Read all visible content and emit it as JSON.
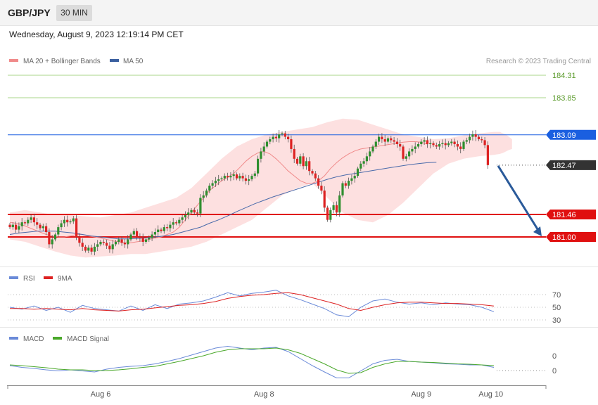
{
  "header": {
    "symbol": "GBP/JPY",
    "timeframe": "30 MIN",
    "datetime": "Wednesday, August 9, 2023 12:19:14 PM CET"
  },
  "colors": {
    "bull": "#2f8f2f",
    "bear": "#dd2222",
    "ma20": "#f08a8a",
    "band": "#fde0e0",
    "ma50": "#4a6aaa",
    "resistance": "#1a5fe0",
    "target": "#5a9a2a",
    "support": "#e01010",
    "price": "#333333",
    "rsi": "#6a8ad8",
    "rsi9": "#dd2222",
    "macd": "#6a8ad8",
    "macdsig": "#4aa82a",
    "arrow": "#2a5a9a"
  },
  "chart_data": {
    "type": "candlestick",
    "symbol": "GBP/JPY",
    "timeframe": "30 MIN",
    "credit": "Research © 2023 Trading Central",
    "legend": [
      {
        "label": "MA 20 + Bollinger Bands",
        "color": "#f08a8a"
      },
      {
        "label": "MA 50",
        "color": "#3a5f9f"
      }
    ],
    "levels": [
      {
        "label": "184.31",
        "value": 184.31,
        "kind": "target"
      },
      {
        "label": "183.85",
        "value": 183.85,
        "kind": "target"
      },
      {
        "label": "183.09",
        "value": 183.09,
        "kind": "resistance"
      },
      {
        "label": "182.47",
        "value": 182.47,
        "kind": "price"
      },
      {
        "label": "181.46",
        "value": 181.46,
        "kind": "support"
      },
      {
        "label": "181.00",
        "value": 181.0,
        "kind": "support"
      }
    ],
    "x_labels": [
      {
        "label": "Aug 6",
        "index": 30
      },
      {
        "label": "Aug 8",
        "index": 84
      },
      {
        "label": "Aug 9",
        "index": 136
      },
      {
        "label": "Aug 10",
        "index": 159
      }
    ],
    "close": [
      181.2,
      181.25,
      181.15,
      181.22,
      181.3,
      181.28,
      181.35,
      181.4,
      181.3,
      181.25,
      181.18,
      181.22,
      181.1,
      180.85,
      180.95,
      181.05,
      181.2,
      181.28,
      181.35,
      181.3,
      181.32,
      181.38,
      181.0,
      180.88,
      180.8,
      180.72,
      180.78,
      180.7,
      180.8,
      180.85,
      180.9,
      180.88,
      180.82,
      180.75,
      180.85,
      180.9,
      180.95,
      180.88,
      180.85,
      180.95,
      181.05,
      181.12,
      181.0,
      180.98,
      180.9,
      180.95,
      180.98,
      181.05,
      181.1,
      181.15,
      181.12,
      181.2,
      181.18,
      181.25,
      181.3,
      181.28,
      181.35,
      181.4,
      181.45,
      181.5,
      181.55,
      181.5,
      181.48,
      181.8,
      181.85,
      181.95,
      182.05,
      182.1,
      182.15,
      182.18,
      182.2,
      182.25,
      182.22,
      182.25,
      182.28,
      182.2,
      182.25,
      182.2,
      182.15,
      182.18,
      182.25,
      182.3,
      182.6,
      182.75,
      182.85,
      182.95,
      183.0,
      183.05,
      183.02,
      183.1,
      183.12,
      183.05,
      183.0,
      182.8,
      182.6,
      182.5,
      182.65,
      182.45,
      182.55,
      182.35,
      182.3,
      182.2,
      182.05,
      181.95,
      181.6,
      181.35,
      181.55,
      181.65,
      181.5,
      181.85,
      182.1,
      182.05,
      182.15,
      182.2,
      182.25,
      182.4,
      182.5,
      182.55,
      182.65,
      182.75,
      182.85,
      182.95,
      183.05,
      183.0,
      182.95,
      183.02,
      182.98,
      182.95,
      182.9,
      182.85,
      182.6,
      182.65,
      182.75,
      182.8,
      182.85,
      182.9,
      182.95,
      182.98,
      182.9,
      182.92,
      182.88,
      182.85,
      182.9,
      182.92,
      182.88,
      182.92,
      182.95,
      182.9,
      182.85,
      182.8,
      182.95,
      182.98,
      183.05,
      183.1,
      183.05,
      183.0,
      182.98,
      182.88,
      182.47
    ],
    "ohlc_note": "Bar-by-bar values estimated from the price axis; open = previous close.",
    "ma20": [
      181.3,
      181.28,
      181.25,
      181.2,
      181.15,
      181.1,
      181.05,
      181.02,
      181.0,
      181.0,
      181.02,
      181.05,
      181.05,
      181.02,
      181.0,
      180.98,
      180.95,
      180.92,
      180.9,
      180.88,
      180.88,
      180.9,
      180.92,
      180.95,
      180.98,
      181.0,
      181.05,
      181.1,
      181.2,
      181.35,
      181.5,
      181.65,
      181.8,
      181.95,
      182.05,
      182.15,
      182.22,
      182.3,
      182.42,
      182.55,
      182.65,
      182.72,
      182.75,
      182.7,
      182.6,
      182.48,
      182.35,
      182.25,
      182.15,
      182.1,
      182.1,
      182.15,
      182.25,
      182.4,
      182.52,
      182.62,
      182.7,
      182.76,
      182.8,
      182.82,
      182.84,
      182.86,
      182.88,
      182.9,
      182.92,
      182.94,
      182.95,
      182.95,
      182.94,
      182.9
    ],
    "ma20_x": [
      0,
      2,
      4,
      6,
      8,
      10,
      12,
      14,
      16,
      18,
      20,
      22,
      24,
      26,
      28,
      30,
      32,
      34,
      36,
      38,
      40,
      42,
      44,
      46,
      48,
      50,
      52,
      54,
      56,
      58,
      60,
      62,
      64,
      66,
      68,
      70,
      72,
      74,
      76,
      78,
      80,
      82,
      84,
      86,
      88,
      90,
      92,
      94,
      96,
      98,
      100,
      102,
      104,
      106,
      108,
      110,
      112,
      114,
      116,
      118,
      120,
      122,
      124,
      126,
      128,
      130,
      132,
      134,
      136,
      138
    ],
    "ma50": [
      181.05,
      181.08,
      181.1,
      181.12,
      181.12,
      181.12,
      181.1,
      181.08,
      181.05,
      181.02,
      181.0,
      180.98,
      180.96,
      180.96,
      180.97,
      180.98,
      181.0,
      181.02,
      181.05,
      181.1,
      181.15,
      181.2,
      181.28,
      181.35,
      181.43,
      181.52,
      181.6,
      181.68,
      181.75,
      181.82,
      181.88,
      181.94,
      182.0,
      182.06,
      182.12,
      182.18,
      182.23,
      182.27,
      182.3,
      182.33,
      182.36,
      182.39,
      182.42,
      182.45,
      182.48,
      182.5,
      182.52,
      182.53
    ],
    "ma50_x": [
      0,
      3,
      6,
      9,
      12,
      15,
      18,
      21,
      24,
      27,
      30,
      33,
      36,
      39,
      42,
      45,
      48,
      51,
      54,
      57,
      60,
      63,
      66,
      69,
      72,
      75,
      78,
      81,
      84,
      87,
      90,
      93,
      96,
      99,
      102,
      105,
      108,
      111,
      114,
      117,
      120,
      123,
      126,
      129,
      132,
      135,
      138,
      141
    ],
    "bb_upper": [
      181.5,
      181.55,
      181.5,
      181.45,
      181.45,
      181.42,
      181.4,
      181.45,
      181.5,
      181.6,
      181.7,
      181.8,
      182.0,
      182.3,
      182.6,
      182.85,
      183.0,
      183.1,
      183.15,
      183.2,
      183.25,
      183.35,
      183.42,
      183.4,
      183.3,
      183.2,
      183.1,
      183.05,
      183.0,
      183.02,
      183.08,
      183.12,
      183.15,
      183.15,
      183.12,
      183.1,
      183.05,
      183.0
    ],
    "bb_lower": [
      180.95,
      180.9,
      180.8,
      180.7,
      180.62,
      180.58,
      180.6,
      180.62,
      180.65,
      180.65,
      180.7,
      180.75,
      180.8,
      180.9,
      181.05,
      181.2,
      181.35,
      181.6,
      181.85,
      182.0,
      182.1,
      181.8,
      181.5,
      181.35,
      181.3,
      181.45,
      181.7,
      182.0,
      182.3,
      182.5,
      182.6,
      182.65,
      182.68,
      182.7,
      182.72,
      182.75,
      182.78,
      182.8
    ],
    "bb_x": [
      0,
      5,
      10,
      15,
      20,
      25,
      30,
      35,
      40,
      45,
      50,
      55,
      60,
      65,
      70,
      75,
      80,
      85,
      90,
      95,
      100,
      105,
      110,
      115,
      120,
      125,
      130,
      135,
      140,
      145,
      150,
      155,
      160,
      162,
      163,
      164,
      165,
      166
    ],
    "forecast": {
      "from_index": 160,
      "from_value": 182.47,
      "to_index": 171,
      "to_value": 181.0
    },
    "rsi": {
      "title": "RSI",
      "levels": [
        {
          "label": "70",
          "value": 70
        },
        {
          "label": "50",
          "value": 50
        },
        {
          "label": "30",
          "value": 30
        }
      ],
      "legend": [
        {
          "label": "RSI",
          "color": "#6a8ad8"
        },
        {
          "label": "9MA",
          "color": "#dd2222"
        }
      ],
      "x": [
        0,
        4,
        8,
        12,
        16,
        20,
        24,
        28,
        32,
        36,
        40,
        44,
        48,
        52,
        56,
        60,
        64,
        68,
        72,
        76,
        80,
        84,
        88,
        92,
        96,
        100,
        104,
        108,
        112,
        116,
        120,
        124,
        128,
        132,
        136,
        140,
        144,
        148,
        152,
        156,
        160
      ],
      "values": [
        50,
        47,
        52,
        45,
        50,
        42,
        53,
        48,
        46,
        44,
        52,
        45,
        54,
        48,
        55,
        57,
        60,
        66,
        73,
        68,
        72,
        74,
        77,
        68,
        62,
        55,
        48,
        38,
        35,
        50,
        60,
        63,
        58,
        55,
        57,
        54,
        57,
        55,
        54,
        50,
        43
      ],
      "ma": [
        48,
        48,
        47,
        48,
        47,
        46,
        48,
        46,
        45,
        44,
        46,
        47,
        49,
        51,
        53,
        54,
        56,
        59,
        64,
        67,
        69,
        70,
        72,
        73,
        70,
        65,
        60,
        55,
        48,
        45,
        50,
        54,
        57,
        58,
        58,
        57,
        56,
        56,
        55,
        54,
        52
      ]
    },
    "macd": {
      "title": "MACD",
      "levels": [
        {
          "label": "0",
          "value": 0.3
        },
        {
          "label": "0",
          "value": -0.05
        }
      ],
      "legend": [
        {
          "label": "MACD",
          "color": "#6a8ad8"
        },
        {
          "label": "MACD Signal",
          "color": "#4aa82a"
        }
      ],
      "x": [
        0,
        4,
        8,
        12,
        16,
        20,
        24,
        28,
        32,
        36,
        40,
        44,
        48,
        52,
        56,
        60,
        64,
        68,
        72,
        76,
        80,
        84,
        88,
        92,
        96,
        100,
        104,
        108,
        112,
        116,
        120,
        124,
        128,
        132,
        136,
        140,
        144,
        148,
        152,
        156,
        160
      ],
      "values": [
        0.0,
        -0.05,
        -0.08,
        -0.12,
        -0.15,
        -0.12,
        -0.15,
        -0.18,
        -0.1,
        -0.05,
        -0.02,
        0.0,
        0.05,
        0.12,
        0.2,
        0.3,
        0.4,
        0.5,
        0.55,
        0.5,
        0.45,
        0.5,
        0.52,
        0.4,
        0.2,
        0.0,
        -0.18,
        -0.35,
        -0.35,
        -0.15,
        0.05,
        0.15,
        0.18,
        0.12,
        0.1,
        0.08,
        0.05,
        0.04,
        0.02,
        0.02,
        -0.05
      ],
      "signal": [
        0.02,
        0.0,
        -0.03,
        -0.06,
        -0.1,
        -0.12,
        -0.12,
        -0.14,
        -0.14,
        -0.12,
        -0.09,
        -0.05,
        -0.02,
        0.05,
        0.12,
        0.2,
        0.28,
        0.38,
        0.45,
        0.48,
        0.48,
        0.48,
        0.5,
        0.45,
        0.35,
        0.2,
        0.05,
        -0.12,
        -0.22,
        -0.2,
        -0.05,
        0.05,
        0.12,
        0.12,
        0.1,
        0.09,
        0.07,
        0.05,
        0.04,
        0.02,
        0.0
      ]
    }
  }
}
